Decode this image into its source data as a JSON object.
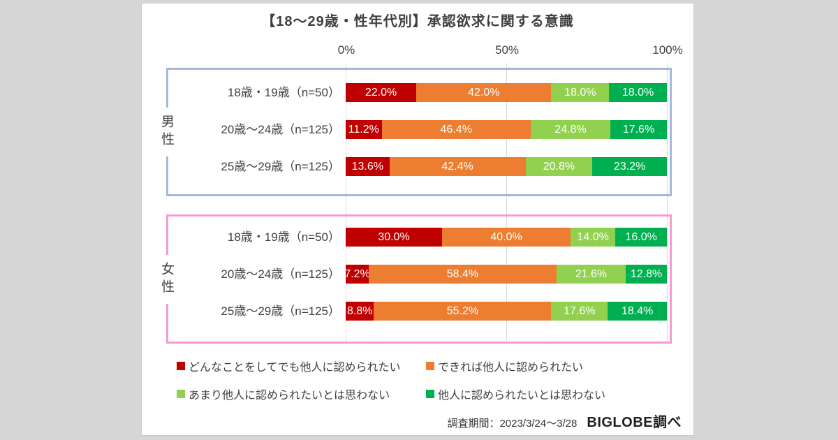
{
  "title": "【18～29歳・性年代別】承認欲求に関する意識",
  "axis": {
    "ticks": [
      "0%",
      "50%",
      "100%"
    ]
  },
  "chart_data": {
    "type": "bar",
    "orientation": "horizontal",
    "stacked": true,
    "xlim": [
      0,
      100
    ],
    "title": "【18～29歳・性年代別】承認欲求に関する意識",
    "tick_labels": [
      "0%",
      "50%",
      "100%"
    ],
    "legend_position": "bottom",
    "series": [
      {
        "name": "どんなことをしてでも他人に認められたい",
        "color": "#c00000"
      },
      {
        "name": "できれば他人に認められたい",
        "color": "#ed7d31"
      },
      {
        "name": "あまり他人に認められたいとは思わない",
        "color": "#92d050"
      },
      {
        "name": "他人に認められたいとは思わない",
        "color": "#00b050"
      }
    ],
    "groups": [
      {
        "label": "男性",
        "border_color": "#a3b9da",
        "rows": [
          {
            "category": "18歳・19歳（n=50）",
            "values": [
              22.0,
              42.0,
              18.0,
              18.0
            ]
          },
          {
            "category": "20歳～24歳（n=125）",
            "values": [
              11.2,
              46.4,
              24.8,
              17.6
            ]
          },
          {
            "category": "25歳～29歳（n=125）",
            "values": [
              13.6,
              42.4,
              20.8,
              23.2
            ]
          }
        ]
      },
      {
        "label": "女性",
        "border_color": "#f79ad2",
        "rows": [
          {
            "category": "18歳・19歳（n=50）",
            "values": [
              30.0,
              40.0,
              14.0,
              16.0
            ]
          },
          {
            "category": "20歳～24歳（n=125）",
            "values": [
              7.2,
              58.4,
              21.6,
              12.8
            ]
          },
          {
            "category": "25歳～29歳（n=125）",
            "values": [
              8.8,
              55.2,
              17.6,
              18.4
            ]
          }
        ]
      }
    ]
  },
  "footer": {
    "survey_period": "調査期間：2023/3/24～3/28",
    "source": "BIGLOBE調べ"
  }
}
